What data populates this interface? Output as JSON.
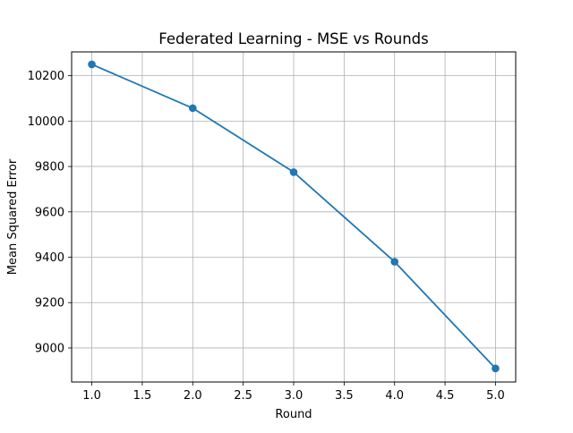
{
  "chart_data": {
    "type": "line",
    "title": "Federated Learning - MSE vs Rounds",
    "xlabel": "Round",
    "ylabel": "Mean Squared Error",
    "grid": true,
    "legend": "none",
    "xlim": [
      0.8,
      5.2
    ],
    "ylim": [
      8850,
      10305
    ],
    "x_ticks": [
      1.0,
      1.5,
      2.0,
      2.5,
      3.0,
      3.5,
      4.0,
      4.5,
      5.0
    ],
    "x_tick_labels": [
      "1.0",
      "1.5",
      "2.0",
      "2.5",
      "3.0",
      "3.5",
      "4.0",
      "4.5",
      "5.0"
    ],
    "y_ticks": [
      9000,
      9200,
      9400,
      9600,
      9800,
      10000,
      10200
    ],
    "y_tick_labels": [
      "9000",
      "9200",
      "9400",
      "9600",
      "9800",
      "10000",
      "10200"
    ],
    "series": [
      {
        "color": "#1f77b4",
        "marker": "circle",
        "x": [
          1,
          2,
          3,
          4,
          5
        ],
        "y": [
          10250,
          10057,
          9775,
          9380,
          8910
        ]
      }
    ]
  }
}
